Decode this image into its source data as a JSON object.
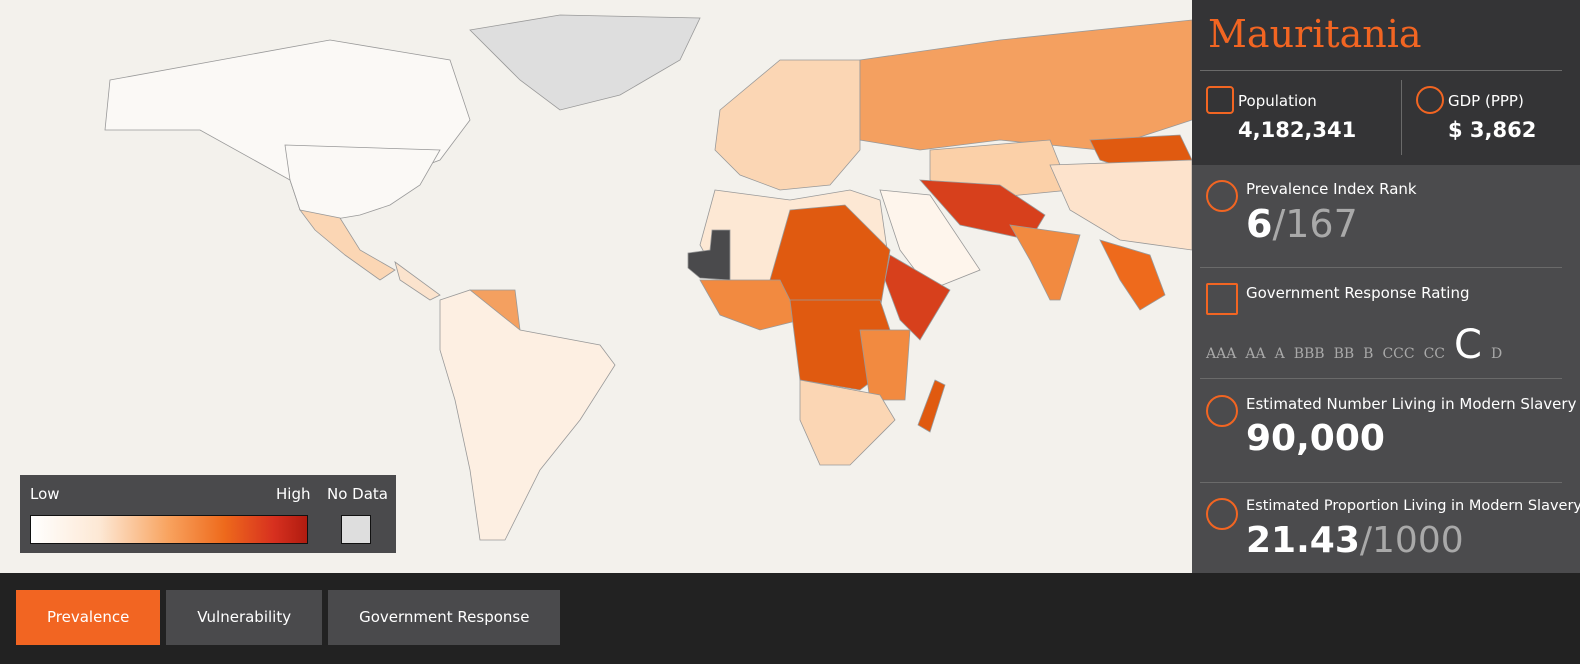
{
  "legend": {
    "low": "Low",
    "high": "High",
    "no_data": "No Data"
  },
  "panel": {
    "country": "Mauritania",
    "population": {
      "label": "Population",
      "value": "4,182,341"
    },
    "gdp": {
      "label": "GDP (PPP)",
      "value": "$ 3,862"
    },
    "rank": {
      "label": "Prevalence Index Rank",
      "value": "6",
      "total": "/167"
    },
    "rating": {
      "label": "Government Response Rating",
      "grades": [
        "AAA",
        "AA",
        "A",
        "BBB",
        "BB",
        "B",
        "CCC",
        "CC",
        "C",
        "D"
      ],
      "selected": "C"
    },
    "number": {
      "label": "Estimated Number Living in Modern Slavery",
      "value": "90,000"
    },
    "proportion": {
      "label": "Estimated Proportion Living in Modern Slavery",
      "value": "21.43",
      "total": "/1000"
    }
  },
  "tabs": {
    "items": [
      "Prevalence",
      "Vulnerability",
      "Government Response"
    ],
    "active": "Prevalence"
  }
}
